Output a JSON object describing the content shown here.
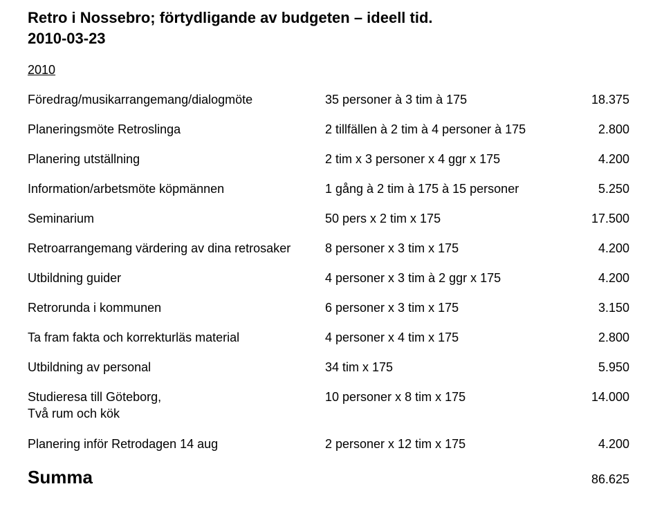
{
  "title": "Retro i Nossebro; förtydligande av budgeten – ideell tid.",
  "date": "2010-03-23",
  "year": "2010",
  "rows": [
    {
      "label": "Föredrag/musikarrangemang/dialogmöte",
      "desc": "35 personer à 3 tim à 175",
      "val": "18.375"
    },
    {
      "label": "Planeringsmöte Retroslinga",
      "desc": "2 tillfällen à 2 tim à 4 personer à 175",
      "val": "2.800"
    },
    {
      "label": "Planering utställning",
      "desc": "2 tim x 3 personer x 4 ggr x 175",
      "val": "4.200"
    },
    {
      "label": "Information/arbetsmöte köpmännen",
      "desc": "1 gång à 2 tim à 175 à 15 personer",
      "val": "5.250"
    },
    {
      "label": "Seminarium",
      "desc": "50 pers x 2 tim x 175",
      "val": "17.500"
    },
    {
      "label": "Retroarrangemang värdering av dina retrosaker",
      "desc": "8 personer x 3 tim x 175",
      "val": "4.200"
    },
    {
      "label": "Utbildning guider",
      "desc": "4 personer x 3 tim à 2 ggr x 175",
      "val": "4.200"
    },
    {
      "label": "Retrorunda i kommunen",
      "desc": "6 personer x 3 tim x 175",
      "val": "3.150"
    },
    {
      "label": "Ta fram fakta och korrekturläs  material",
      "desc": "4 personer x 4 tim x 175",
      "val": "2.800"
    },
    {
      "label": "Utbildning av personal",
      "desc": "34 tim x 175",
      "val": "5.950"
    }
  ],
  "studieresa": {
    "label": "Studieresa till Göteborg,",
    "sublabel": "Två rum och kök",
    "desc": "10 personer x 8 tim x 175",
    "val": "14.000"
  },
  "last_row": {
    "label": "Planering inför Retrodagen 14 aug",
    "desc": "2 personer x 12 tim x 175",
    "val": "4.200"
  },
  "summa_label": "Summa",
  "summa_val": "86.625"
}
